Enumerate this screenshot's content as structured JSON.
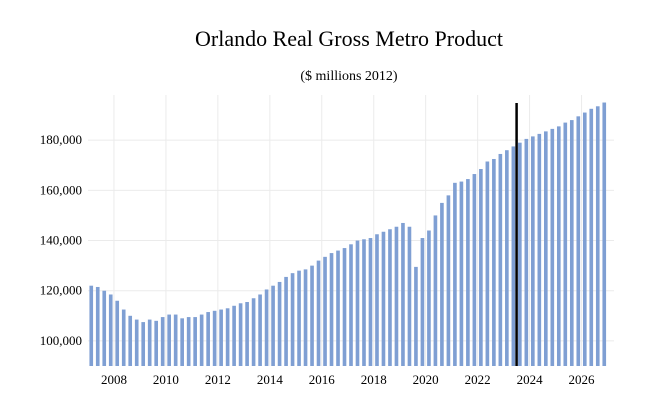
{
  "chart_data": {
    "type": "bar",
    "title": "Orlando Real Gross Metro Product",
    "subtitle": "($ millions 2012)",
    "xlabel": "",
    "ylabel": "",
    "ylim": [
      90000,
      198000
    ],
    "xlim": [
      2007.0,
      2027.25
    ],
    "y_ticks": [
      100000,
      120000,
      140000,
      160000,
      180000
    ],
    "y_tick_labels": [
      "100,000",
      "120,000",
      "140,000",
      "160,000",
      "180,000"
    ],
    "x_ticks": [
      2008,
      2010,
      2012,
      2014,
      2016,
      2018,
      2020,
      2022,
      2024,
      2026
    ],
    "x_tick_labels": [
      "2008",
      "2010",
      "2012",
      "2014",
      "2016",
      "2018",
      "2020",
      "2022",
      "2024",
      "2026"
    ],
    "grid": true,
    "legend": "none",
    "bar_color": "#7f9fd3",
    "vertical_marker": 2023.5,
    "x_start": 2007.125,
    "x_step": 0.25,
    "values": [
      122000,
      121500,
      120000,
      118500,
      116000,
      112500,
      110000,
      108500,
      107500,
      108500,
      108000,
      109500,
      110500,
      110500,
      109000,
      109500,
      109500,
      110500,
      111500,
      112000,
      112500,
      113000,
      114000,
      115000,
      115500,
      117000,
      118500,
      120500,
      122000,
      123500,
      125500,
      127000,
      128000,
      128500,
      130000,
      132000,
      133500,
      135000,
      136000,
      137000,
      138500,
      140000,
      140500,
      141000,
      142500,
      143500,
      144500,
      145500,
      147000,
      145500,
      129500,
      141000,
      144000,
      150000,
      155000,
      158000,
      163000,
      163500,
      164500,
      166500,
      168500,
      171500,
      172500,
      174500,
      176000,
      177500,
      179000,
      180500,
      181500,
      182500,
      183500,
      184500,
      185500,
      187000,
      188000,
      189500,
      191000,
      192500,
      193500,
      195000
    ]
  }
}
